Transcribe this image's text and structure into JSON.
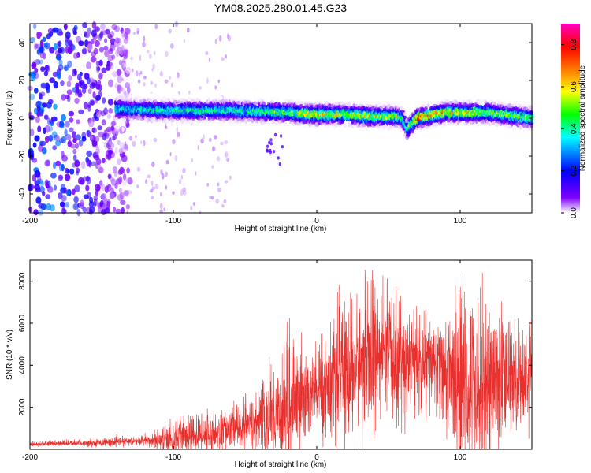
{
  "chart_data": [
    {
      "type": "heatmap",
      "title": "YM08.2025.280.01.45.G23",
      "xlabel": "Height of straight line (km)",
      "ylabel": "Frequency (Hz)",
      "xlim": [
        -200,
        150
      ],
      "ylim": [
        -50,
        50
      ],
      "x_ticks": [
        -200,
        -100,
        0,
        100
      ],
      "y_ticks": [
        -40,
        -20,
        0,
        20,
        40
      ],
      "colorbar": {
        "label": "Normalized spectral amplitude",
        "range": [
          0,
          0.9
        ],
        "ticks": [
          0,
          0.2,
          0.4,
          0.6,
          0.8
        ],
        "colormap": [
          "#ffffff",
          "#7f00ff",
          "#0000ff",
          "#00ffff",
          "#00ff00",
          "#ffff00",
          "#ff8000",
          "#ff0000",
          "#ff00bf"
        ]
      },
      "ridge": {
        "description_points_x": [
          -140,
          -100,
          -60,
          -20,
          0,
          20,
          40,
          55,
          60,
          63,
          70,
          90,
          120,
          150
        ],
        "center_freq": [
          5,
          4,
          4,
          3,
          2,
          2,
          1,
          1,
          0,
          -6,
          0,
          3,
          3,
          0
        ],
        "peak_amplitude": [
          0.4,
          0.45,
          0.45,
          0.55,
          0.7,
          0.6,
          0.65,
          0.6,
          0.5,
          0.5,
          0.8,
          0.7,
          0.6,
          0.55
        ]
      },
      "noise_region_x": [
        -200,
        -140
      ]
    },
    {
      "type": "line",
      "title": "",
      "xlabel": "Height of straight line (km)",
      "ylabel": "SNR (10 * v/v)",
      "xlim": [
        -200,
        150
      ],
      "ylim": [
        0,
        9000
      ],
      "x_ticks": [
        -200,
        -100,
        0,
        100
      ],
      "y_ticks": [
        2000,
        4000,
        6000,
        8000
      ],
      "line_color": "#e8312e",
      "envelope": {
        "x": [
          -200,
          -160,
          -120,
          -100,
          -80,
          -60,
          -40,
          -20,
          0,
          20,
          40,
          60,
          80,
          90,
          100,
          120,
          150
        ],
        "mean": [
          250,
          300,
          400,
          500,
          700,
          900,
          1300,
          2000,
          2800,
          3500,
          4200,
          4200,
          4000,
          3700,
          3000,
          3300,
          3500
        ],
        "max": [
          400,
          500,
          700,
          1600,
          1900,
          2200,
          3200,
          6200,
          5500,
          7500,
          8800,
          7800,
          6800,
          7000,
          8800,
          8200,
          6000
        ]
      }
    }
  ]
}
